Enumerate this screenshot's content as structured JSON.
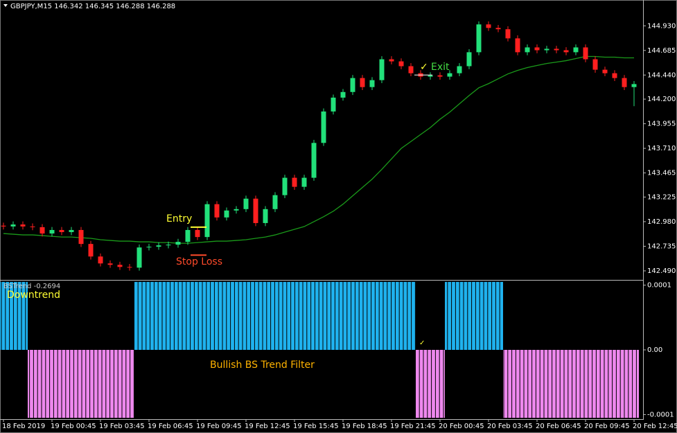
{
  "chart_data": [
    {
      "type": "candlestick",
      "header": "GBPJPY,M15  146.342 146.345 146.288 146.288",
      "categories": [
        "18 Feb 2019",
        null,
        null,
        null,
        null,
        "19 Feb 00:45",
        null,
        null,
        null,
        null,
        "19 Feb 03:45",
        null,
        null,
        null,
        null,
        "19 Feb 06:45",
        null,
        null,
        null,
        null,
        "19 Feb 09:45",
        null,
        null,
        null,
        null,
        "19 Feb 12:45",
        null,
        null,
        null,
        null,
        "19 Feb 15:45",
        null,
        null,
        null,
        null,
        "19 Feb 18:45",
        null,
        null,
        null,
        null,
        "19 Feb 21:45",
        null,
        null,
        null,
        null,
        "20 Feb 00:45",
        null,
        null,
        null,
        null,
        "20 Feb 03:45",
        null,
        null,
        null,
        null,
        "20 Feb 06:45",
        null,
        null,
        null,
        null,
        "20 Feb 09:45",
        null,
        null,
        null,
        null,
        "20 Feb 12:45"
      ],
      "open": [
        142.94,
        142.932,
        142.952,
        142.932,
        142.925,
        142.862,
        142.897,
        142.876,
        142.897,
        142.758,
        142.633,
        142.564,
        142.55,
        142.529,
        142.522,
        142.723,
        142.73,
        142.744,
        142.751,
        142.779,
        142.897,
        142.827,
        143.154,
        143.022,
        143.091,
        143.105,
        143.209,
        142.966,
        143.105,
        143.244,
        143.417,
        143.327,
        143.417,
        143.764,
        144.077,
        144.215,
        144.271,
        144.41,
        144.32,
        144.389,
        144.597,
        144.576,
        144.528,
        144.458,
        144.424,
        144.437,
        144.424,
        144.458,
        144.528,
        144.667,
        144.944,
        144.909,
        144.896,
        144.805,
        144.667,
        144.715,
        144.687,
        144.701,
        144.687,
        144.667,
        144.715,
        144.597,
        144.493,
        144.458,
        144.41,
        144.32
      ],
      "high": [
        142.97,
        142.982,
        142.982,
        142.962,
        142.955,
        142.927,
        142.927,
        142.927,
        142.927,
        142.788,
        142.663,
        142.594,
        142.58,
        142.559,
        142.753,
        142.76,
        142.774,
        142.781,
        142.809,
        142.927,
        142.927,
        143.184,
        143.184,
        143.121,
        143.135,
        143.239,
        143.239,
        143.135,
        143.274,
        143.447,
        143.447,
        143.447,
        143.794,
        144.107,
        144.245,
        144.301,
        144.44,
        144.44,
        144.419,
        144.627,
        144.627,
        144.606,
        144.558,
        144.488,
        144.467,
        144.467,
        144.488,
        144.558,
        144.697,
        144.974,
        144.974,
        144.939,
        144.926,
        144.835,
        144.745,
        144.745,
        144.731,
        144.731,
        144.717,
        144.745,
        144.745,
        144.627,
        144.523,
        144.488,
        144.44,
        144.38
      ],
      "low": [
        142.902,
        142.902,
        142.902,
        142.895,
        142.832,
        142.832,
        142.846,
        142.846,
        142.728,
        142.603,
        142.534,
        142.52,
        142.499,
        142.492,
        142.492,
        142.693,
        142.7,
        142.714,
        142.721,
        142.749,
        142.797,
        142.797,
        142.992,
        142.992,
        143.061,
        143.075,
        142.936,
        142.936,
        143.075,
        143.214,
        143.297,
        143.297,
        143.387,
        143.734,
        144.047,
        144.185,
        144.241,
        144.29,
        144.29,
        144.359,
        144.546,
        144.498,
        144.428,
        144.394,
        144.394,
        144.394,
        144.394,
        144.428,
        144.498,
        144.637,
        144.879,
        144.866,
        144.775,
        144.637,
        144.637,
        144.657,
        144.657,
        144.657,
        144.637,
        144.637,
        144.567,
        144.463,
        144.428,
        144.38,
        144.29,
        144.13
      ],
      "close": [
        142.932,
        142.952,
        142.932,
        142.925,
        142.862,
        142.897,
        142.876,
        142.897,
        142.758,
        142.633,
        142.564,
        142.55,
        142.529,
        142.522,
        142.723,
        142.73,
        142.744,
        142.751,
        142.779,
        142.897,
        142.827,
        143.154,
        143.022,
        143.091,
        143.105,
        143.209,
        142.966,
        143.105,
        143.244,
        143.417,
        143.327,
        143.417,
        143.764,
        144.077,
        144.215,
        144.271,
        144.41,
        144.32,
        144.389,
        144.597,
        144.576,
        144.528,
        144.458,
        144.424,
        144.437,
        144.424,
        144.458,
        144.528,
        144.667,
        144.944,
        144.909,
        144.896,
        144.805,
        144.667,
        144.715,
        144.687,
        144.701,
        144.687,
        144.667,
        144.715,
        144.597,
        144.493,
        144.458,
        144.41,
        144.32,
        144.35
      ],
      "up_color": "#22e07a",
      "down_color": "#ff1f1f",
      "ma": {
        "color": "#1a9a1a",
        "values": [
          142.862,
          142.855,
          142.848,
          142.848,
          142.841,
          142.834,
          142.827,
          142.827,
          142.82,
          142.814,
          142.8,
          142.793,
          142.786,
          142.786,
          142.779,
          142.779,
          142.772,
          142.772,
          142.765,
          142.765,
          142.772,
          142.779,
          142.786,
          142.786,
          142.793,
          142.8,
          142.814,
          142.827,
          142.848,
          142.876,
          142.904,
          142.931,
          142.98,
          143.029,
          143.084,
          143.154,
          143.237,
          143.32,
          143.403,
          143.501,
          143.605,
          143.709,
          143.778,
          143.848,
          143.917,
          144.0,
          144.07,
          144.153,
          144.236,
          144.313,
          144.354,
          144.403,
          144.451,
          144.486,
          144.514,
          144.535,
          144.555,
          144.569,
          144.583,
          144.604,
          144.625,
          144.625,
          144.618,
          144.618,
          144.611,
          144.611
        ]
      },
      "ylim": [
        142.407,
        145.187
      ],
      "yticks": [
        {
          "value": 144.93,
          "label": "144.930"
        },
        144.685,
        {
          "value": 144.44,
          "label": "144.440"
        },
        {
          "value": 144.2,
          "label": "144.200"
        },
        143.955,
        {
          "value": 143.71,
          "label": "143.710"
        },
        143.465,
        143.225,
        {
          "value": 142.98,
          "label": "142.980"
        },
        142.735,
        {
          "value": 142.49,
          "label": "142.490"
        }
      ],
      "entry_text": "Entry",
      "entry_level": 142.925,
      "stop_text": "Stop Loss",
      "stop_level": 142.647,
      "exit_text": "Exit",
      "exit_level": 144.44,
      "check": "✓"
    },
    {
      "type": "histogram",
      "label": "BSTrend -0.2694",
      "annotation": "Downtrend",
      "subtitle": "Bullish BS Trend Filter",
      "positive_color": "#1fb2ee",
      "negative_color": "#ee88ee",
      "values": [
        0.000105,
        0.000105,
        0.000105,
        -0.000105,
        -0.000105,
        -0.000105,
        -0.000105,
        -0.000105,
        -0.000105,
        -0.000105,
        -0.000105,
        -0.000105,
        -0.000105,
        -0.000105,
        0.000105,
        0.000105,
        0.000105,
        0.000105,
        0.000105,
        0.000105,
        0.000105,
        0.000105,
        0.000105,
        0.000105,
        0.000105,
        0.000105,
        0.000105,
        0.000105,
        0.000105,
        0.000105,
        0.000105,
        0.000105,
        0.000105,
        0.000105,
        0.000105,
        0.000105,
        0.000105,
        0.000105,
        0.000105,
        0.000105,
        0.000105,
        0.000105,
        0.000105,
        -0.000105,
        -0.000105,
        -0.000105,
        0.000105,
        0.000105,
        0.000105,
        0.000105,
        0.000105,
        0.000105,
        -0.000105,
        -0.000105,
        -0.000105,
        -0.000105,
        -0.000105,
        -0.000105,
        -0.000105,
        -0.000105,
        -0.000105,
        -0.000105,
        -0.000105,
        -0.000105,
        -0.000105,
        -0.000105
      ],
      "ylim": [
        -0.000107,
        0.000107
      ],
      "yticks": [
        0.0001,
        {
          "value": 0,
          "label": "0.00"
        },
        -0.0001
      ]
    }
  ]
}
